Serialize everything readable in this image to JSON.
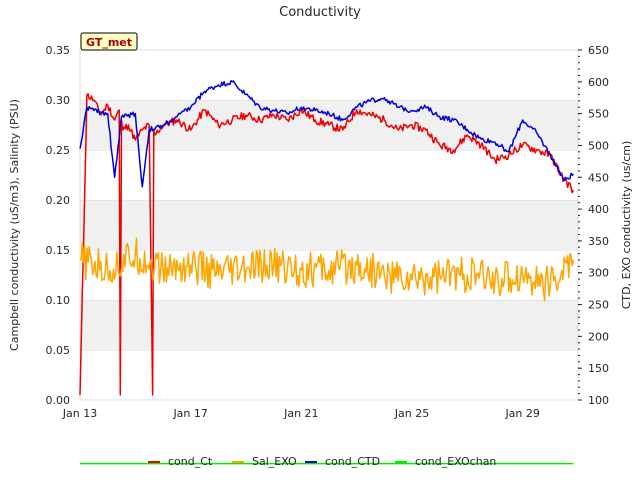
{
  "chart_data": {
    "type": "line",
    "title": "Conductivity",
    "badge": "GT_met",
    "xlabel": "",
    "ylabel_left": "Campbell conductivity (uS/m3), Salinity (PSU)",
    "ylabel_right": "CTD, EXO conductivity (us/cm)",
    "x_range": [
      "Jan 13",
      "Jan 31"
    ],
    "x_ticks": [
      "Jan 13",
      "Jan 17",
      "Jan 21",
      "Jan 25",
      "Jan 29"
    ],
    "y_left_range": [
      0,
      0.35
    ],
    "y_left_ticks": [
      "0.00",
      "0.05",
      "0.10",
      "0.15",
      "0.20",
      "0.25",
      "0.30",
      "0.35"
    ],
    "y_right_range": [
      100,
      650
    ],
    "y_right_ticks": [
      "100",
      "150",
      "200",
      "250",
      "300",
      "350",
      "400",
      "450",
      "500",
      "550",
      "600",
      "650"
    ],
    "grid": "horizontal bands",
    "legend_position": "bottom",
    "series": [
      {
        "name": "cond_Ct",
        "axis": "left",
        "color": "#ee0000",
        "x": [
          "Jan 13 00:00",
          "Jan 13 06:00",
          "Jan 13 12:00",
          "Jan 13 18:00",
          "Jan 14 00:00",
          "Jan 14 06:00",
          "Jan 14 10:00",
          "Jan 14 11:00",
          "Jan 14 12:00",
          "Jan 14 13:00",
          "Jan 14 18:00",
          "Jan 15 00:00",
          "Jan 15 06:00",
          "Jan 15 12:00",
          "Jan 15 15:00",
          "Jan 15 16:00",
          "Jan 15 17:00",
          "Jan 16 00:00",
          "Jan 16 12:00",
          "Jan 17 00:00",
          "Jan 17 12:00",
          "Jan 18 00:00",
          "Jan 18 12:00",
          "Jan 19 00:00",
          "Jan 19 12:00",
          "Jan 20 00:00",
          "Jan 20 12:00",
          "Jan 21 00:00",
          "Jan 21 12:00",
          "Jan 22 00:00",
          "Jan 22 12:00",
          "Jan 23 00:00",
          "Jan 23 12:00",
          "Jan 24 00:00",
          "Jan 24 12:00",
          "Jan 25 00:00",
          "Jan 25 12:00",
          "Jan 26 00:00",
          "Jan 26 12:00",
          "Jan 27 00:00",
          "Jan 27 12:00",
          "Jan 28 00:00",
          "Jan 28 12:00",
          "Jan 29 00:00",
          "Jan 29 12:00",
          "Jan 30 00:00",
          "Jan 30 12:00",
          "Jan 30 20:00"
        ],
        "y": [
          0.005,
          0.305,
          0.3,
          0.285,
          0.295,
          0.28,
          0.29,
          0.005,
          0.28,
          0.27,
          0.275,
          0.26,
          0.27,
          0.275,
          0.005,
          0.27,
          0.265,
          0.275,
          0.28,
          0.27,
          0.29,
          0.275,
          0.28,
          0.285,
          0.28,
          0.285,
          0.28,
          0.29,
          0.28,
          0.275,
          0.27,
          0.29,
          0.285,
          0.28,
          0.27,
          0.275,
          0.27,
          0.255,
          0.25,
          0.265,
          0.255,
          0.24,
          0.245,
          0.255,
          0.25,
          0.245,
          0.22,
          0.21
        ]
      },
      {
        "name": "Sal_EXO",
        "axis": "left",
        "color": "#ffa500",
        "x": [
          "Jan 13 00:00",
          "Jan 14 00:00",
          "Jan 15 00:00",
          "Jan 16 00:00",
          "Jan 17 00:00",
          "Jan 18 00:00",
          "Jan 19 00:00",
          "Jan 20 00:00",
          "Jan 21 00:00",
          "Jan 22 00:00",
          "Jan 23 00:00",
          "Jan 24 00:00",
          "Jan 25 00:00",
          "Jan 26 00:00",
          "Jan 27 00:00",
          "Jan 28 00:00",
          "Jan 29 00:00",
          "Jan 30 00:00",
          "Jan 30 20:00"
        ],
        "y": [
          0.14,
          0.13,
          0.145,
          0.13,
          0.135,
          0.125,
          0.13,
          0.135,
          0.13,
          0.13,
          0.135,
          0.125,
          0.12,
          0.125,
          0.125,
          0.12,
          0.125,
          0.115,
          0.14
        ]
      },
      {
        "name": "cond_CTD",
        "axis": "right",
        "color": "#0000dd",
        "x": [
          "Jan 13 00:00",
          "Jan 13 06:00",
          "Jan 13 12:00",
          "Jan 14 00:00",
          "Jan 14 06:00",
          "Jan 14 12:00",
          "Jan 15 00:00",
          "Jan 15 06:00",
          "Jan 15 12:00",
          "Jan 16 00:00",
          "Jan 16 12:00",
          "Jan 17 00:00",
          "Jan 17 12:00",
          "Jan 18 00:00",
          "Jan 18 12:00",
          "Jan 19 00:00",
          "Jan 19 12:00",
          "Jan 20 00:00",
          "Jan 20 12:00",
          "Jan 21 00:00",
          "Jan 21 12:00",
          "Jan 22 00:00",
          "Jan 22 12:00",
          "Jan 23 00:00",
          "Jan 23 12:00",
          "Jan 24 00:00",
          "Jan 24 12:00",
          "Jan 25 00:00",
          "Jan 25 12:00",
          "Jan 26 00:00",
          "Jan 26 12:00",
          "Jan 27 00:00",
          "Jan 27 12:00",
          "Jan 28 00:00",
          "Jan 28 12:00",
          "Jan 29 00:00",
          "Jan 29 12:00",
          "Jan 30 00:00",
          "Jan 30 12:00",
          "Jan 30 20:00"
        ],
        "y": [
          495,
          560,
          555,
          550,
          450,
          545,
          550,
          435,
          525,
          530,
          545,
          560,
          585,
          595,
          600,
          580,
          560,
          555,
          550,
          560,
          555,
          550,
          540,
          560,
          570,
          575,
          560,
          555,
          560,
          545,
          540,
          525,
          510,
          505,
          490,
          540,
          520,
          485,
          445,
          455
        ]
      },
      {
        "name": "cond_EXOchan",
        "axis": "right",
        "color": "#00ee00",
        "x": [
          "Jan 13 00:00",
          "Jan 14 00:00",
          "Jan 15 00:00",
          "Jan 16 00:00",
          "Jan 17 00:00",
          "Jan 18 00:00",
          "Jan 19 00:00",
          "Jan 20 00:00",
          "Jan 21 00:00",
          "Jan 22 00:00",
          "Jan 23 00:00",
          "Jan 24 00:00",
          "Jan 25 00:00",
          "Jan 26 00:00",
          "Jan 27 00:00",
          "Jan 28 00:00",
          "Jan 29 00:00",
          "Jan 30 00:00",
          "Jan 30 20:00"
        ],
        "y": [
          0.065,
          0.075,
          0.06,
          0.06,
          0.055,
          0.06,
          0.06,
          0.055,
          0.06,
          0.06,
          0.055,
          0.055,
          0.05,
          0.05,
          0.05,
          0.05,
          0.045,
          0.045,
          0.055
        ]
      }
    ]
  }
}
